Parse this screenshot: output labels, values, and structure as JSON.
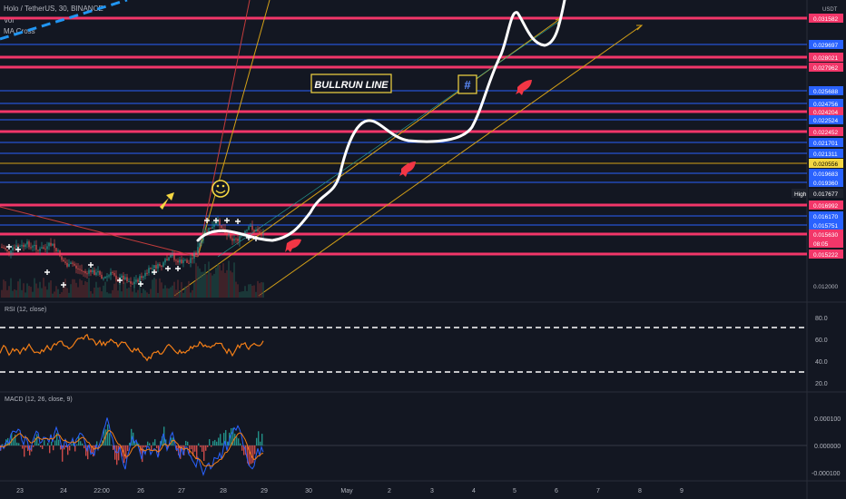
{
  "header": {
    "symbol_line": "Holo / TetherUS, 30, BINANCE",
    "vol_label": "Vol",
    "ma_label": "MA Cross"
  },
  "rsi": {
    "label": "RSI (12, close)",
    "ticks": [
      "80.0",
      "60.0",
      "40.0",
      "20.0"
    ]
  },
  "macd": {
    "label": "MACD (12, 26, close, 9)",
    "ticks": [
      "0.000100",
      "0.000000",
      "-0.000100"
    ]
  },
  "price_axis": {
    "currency": "USDT",
    "levels": [
      {
        "label": "0.031582",
        "color": "#f23669"
      },
      {
        "label": "0.029697",
        "color": "#2962ff"
      },
      {
        "label": "0.028021",
        "color": "#f23669"
      },
      {
        "label": "0.027962",
        "color": "#f23669"
      },
      {
        "label": "0.025688",
        "color": "#2962ff"
      },
      {
        "label": "0.024756",
        "color": "#2962ff"
      },
      {
        "label": "0.024204",
        "color": "#f23669"
      },
      {
        "label": "0.022524",
        "color": "#2962ff"
      },
      {
        "label": "0.022452",
        "color": "#f23669"
      },
      {
        "label": "0.021701",
        "color": "#2962ff"
      },
      {
        "label": "0.021311",
        "color": "#2962ff"
      },
      {
        "label": "0.020556",
        "color": "#f5d742"
      },
      {
        "label": "0.019683",
        "color": "#2962ff"
      },
      {
        "label": "0.019360",
        "color": "#2962ff"
      },
      {
        "label": "0.017677",
        "color": "#1e222d"
      },
      {
        "label": "0.016992",
        "color": "#f23669"
      },
      {
        "label": "0.016170",
        "color": "#2962ff"
      },
      {
        "label": "0.015751",
        "color": "#2962ff"
      },
      {
        "label": "0.015630",
        "color": "#f23669"
      },
      {
        "label": "08:05",
        "color": "#f23669"
      },
      {
        "label": "0.015222",
        "color": "#f23669"
      },
      {
        "label": "0.012000",
        "color": "none"
      }
    ],
    "high_label": "High"
  },
  "time_axis": [
    "23",
    "24",
    "22:00",
    "26",
    "27",
    "28",
    "29",
    "30",
    "May",
    "2",
    "3",
    "4",
    "5",
    "6",
    "7",
    "8",
    "9"
  ],
  "annotations": {
    "bullrun": "BULLRUN LINE",
    "hash": "#"
  },
  "colors": {
    "background": "#131722",
    "pink_line": "#f23669",
    "blue_line": "#2962ff",
    "yellow_line": "#f5d742",
    "rsi_line": "#f57f17"
  }
}
